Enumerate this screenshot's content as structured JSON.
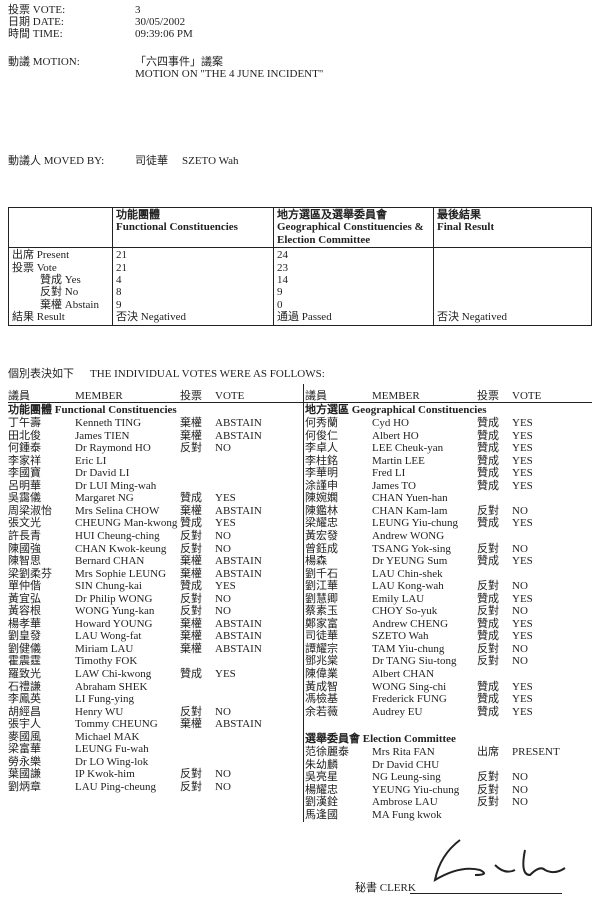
{
  "header": {
    "vote_label": "投票 VOTE:",
    "vote": "3",
    "date_label": "日期 DATE:",
    "date": "30/05/2002",
    "time_label": "時間 TIME:",
    "time": "09:39:06 PM",
    "motion_label": "動議 MOTION:",
    "motion_cn": "「六四事件」議案",
    "motion_en": "MOTION ON \"THE 4 JUNE INCIDENT\"",
    "moved_label": "動議人 MOVED BY:",
    "moved_cn": "司徒華",
    "moved_en": "SZETO Wah"
  },
  "summary": {
    "col_fc_cn": "功能團體",
    "col_fc_en": "Functional Constituencies",
    "col_gc_cn": "地方選區及選舉委員會",
    "col_gc_en": "Geographical Constituencies & Election Committee",
    "col_final_cn": "最後結果",
    "col_final_en": "Final Result",
    "rows": [
      {
        "label": "出席 Present",
        "fc": "21",
        "gc": "24",
        "final": ""
      },
      {
        "label": "投票 Vote",
        "fc": "21",
        "gc": "23",
        "final": ""
      },
      {
        "label": "贊成 Yes",
        "fc": "4",
        "gc": "14",
        "final": ""
      },
      {
        "label": "反對 No",
        "fc": "8",
        "gc": "9",
        "final": ""
      },
      {
        "label": "棄權 Abstain",
        "fc": "9",
        "gc": "0",
        "final": ""
      },
      {
        "label": "結果 Result",
        "fc": "否決 Negatived",
        "gc": "通過 Passed",
        "final": "否決 Negatived"
      }
    ]
  },
  "votes": {
    "intro_cn": "個別表決如下",
    "intro_en": "THE INDIVIDUAL VOTES WERE AS FOLLOWS:",
    "col_member_cn": "議員",
    "col_member_en": "MEMBER",
    "col_vote_cn": "投票",
    "col_vote_en": "VOTE",
    "fc_heading": "功能團體 Functional Constituencies",
    "fc": [
      [
        "丁午壽",
        "Kenneth TING",
        "棄權",
        "ABSTAIN"
      ],
      [
        "田北俊",
        "James TIEN",
        "棄權",
        "ABSTAIN"
      ],
      [
        "何鍾泰",
        "Dr Raymond HO",
        "反對",
        "NO"
      ],
      [
        "李家祥",
        "Eric LI",
        "",
        ""
      ],
      [
        "李國寶",
        "Dr David LI",
        "",
        ""
      ],
      [
        "呂明華",
        "Dr LUI Ming-wah",
        "",
        ""
      ],
      [
        "吳靄儀",
        "Margaret NG",
        "贊成",
        "YES"
      ],
      [
        "周梁淑怡",
        "Mrs Selina CHOW",
        "棄權",
        "ABSTAIN"
      ],
      [
        "張文光",
        "CHEUNG Man-kwong",
        "贊成",
        "YES"
      ],
      [
        "許長青",
        "HUI Cheung-ching",
        "反對",
        "NO"
      ],
      [
        "陳國強",
        "CHAN Kwok-keung",
        "反對",
        "NO"
      ],
      [
        "陳智思",
        "Bernard CHAN",
        "棄權",
        "ABSTAIN"
      ],
      [
        "梁劉柔芬",
        "Mrs Sophie LEUNG",
        "棄權",
        "ABSTAIN"
      ],
      [
        "單仲偕",
        "SIN Chung-kai",
        "贊成",
        "YES"
      ],
      [
        "黃宜弘",
        "Dr Philip WONG",
        "反對",
        "NO"
      ],
      [
        "黃容根",
        "WONG Yung-kan",
        "反對",
        "NO"
      ],
      [
        "楊孝華",
        "Howard YOUNG",
        "棄權",
        "ABSTAIN"
      ],
      [
        "劉皇發",
        "LAU Wong-fat",
        "棄權",
        "ABSTAIN"
      ],
      [
        "劉健儀",
        "Miriam LAU",
        "棄權",
        "ABSTAIN"
      ],
      [
        "霍震霆",
        "Timothy FOK",
        "",
        ""
      ],
      [
        "羅致光",
        "LAW Chi-kwong",
        "贊成",
        "YES"
      ],
      [
        "石禮謙",
        "Abraham SHEK",
        "",
        ""
      ],
      [
        "李鳳英",
        "LI Fung-ying",
        "",
        ""
      ],
      [
        "胡經昌",
        "Henry WU",
        "反對",
        "NO"
      ],
      [
        "張宇人",
        "Tommy CHEUNG",
        "棄權",
        "ABSTAIN"
      ],
      [
        "麥國風",
        "Michael MAK",
        "",
        ""
      ],
      [
        "梁富華",
        "LEUNG Fu-wah",
        "",
        ""
      ],
      [
        "勞永樂",
        "Dr LO Wing-lok",
        "",
        ""
      ],
      [
        "葉國謙",
        "IP Kwok-him",
        "反對",
        "NO"
      ],
      [
        "劉炳章",
        "LAU Ping-cheung",
        "反對",
        "NO"
      ]
    ],
    "gc_heading": "地方選區 Geographical Constituencies",
    "gc": [
      [
        "何秀蘭",
        "Cyd HO",
        "贊成",
        "YES"
      ],
      [
        "何俊仁",
        "Albert HO",
        "贊成",
        "YES"
      ],
      [
        "李卓人",
        "LEE Cheuk-yan",
        "贊成",
        "YES"
      ],
      [
        "李柱銘",
        "Martin LEE",
        "贊成",
        "YES"
      ],
      [
        "李華明",
        "Fred LI",
        "贊成",
        "YES"
      ],
      [
        "涂謹申",
        "James TO",
        "贊成",
        "YES"
      ],
      [
        "陳婉嫻",
        "CHAN Yuen-han",
        "",
        ""
      ],
      [
        "陳鑑林",
        "CHAN Kam-lam",
        "反對",
        "NO"
      ],
      [
        "梁耀忠",
        "LEUNG Yiu-chung",
        "贊成",
        "YES"
      ],
      [
        "黃宏發",
        "Andrew WONG",
        "",
        ""
      ],
      [
        "曾鈺成",
        "TSANG Yok-sing",
        "反對",
        "NO"
      ],
      [
        "楊森",
        "Dr YEUNG Sum",
        "贊成",
        "YES"
      ],
      [
        "劉千石",
        "LAU Chin-shek",
        "",
        ""
      ],
      [
        "劉江華",
        "LAU Kong-wah",
        "反對",
        "NO"
      ],
      [
        "劉慧卿",
        "Emily LAU",
        "贊成",
        "YES"
      ],
      [
        "蔡素玉",
        "CHOY So-yuk",
        "反對",
        "NO"
      ],
      [
        "鄭家富",
        "Andrew CHENG",
        "贊成",
        "YES"
      ],
      [
        "司徒華",
        "SZETO Wah",
        "贊成",
        "YES"
      ],
      [
        "譚耀宗",
        "TAM Yiu-chung",
        "反對",
        "NO"
      ],
      [
        "鄧兆棠",
        "Dr TANG Siu-tong",
        "反對",
        "NO"
      ],
      [
        "陳偉業",
        "Albert CHAN",
        "",
        ""
      ],
      [
        "黃成智",
        "WONG Sing-chi",
        "贊成",
        "YES"
      ],
      [
        "馮檢基",
        "Frederick FUNG",
        "贊成",
        "YES"
      ],
      [
        "余若薇",
        "Audrey EU",
        "贊成",
        "YES"
      ]
    ],
    "ec_heading": "選舉委員會 Election Committee",
    "ec": [
      [
        "范徐麗泰",
        "Mrs Rita FAN",
        "出席",
        "PRESENT"
      ],
      [
        "朱幼麟",
        "Dr David CHU",
        "",
        ""
      ],
      [
        "吳亮星",
        "NG Leung-sing",
        "反對",
        "NO"
      ],
      [
        "楊耀忠",
        "YEUNG Yiu-chung",
        "反對",
        "NO"
      ],
      [
        "劉漢銓",
        "Ambrose LAU",
        "反對",
        "NO"
      ],
      [
        "馬逢國",
        "MA Fung kwok",
        "",
        ""
      ]
    ]
  },
  "footer": {
    "clerk_label": "秘書 CLERK"
  }
}
